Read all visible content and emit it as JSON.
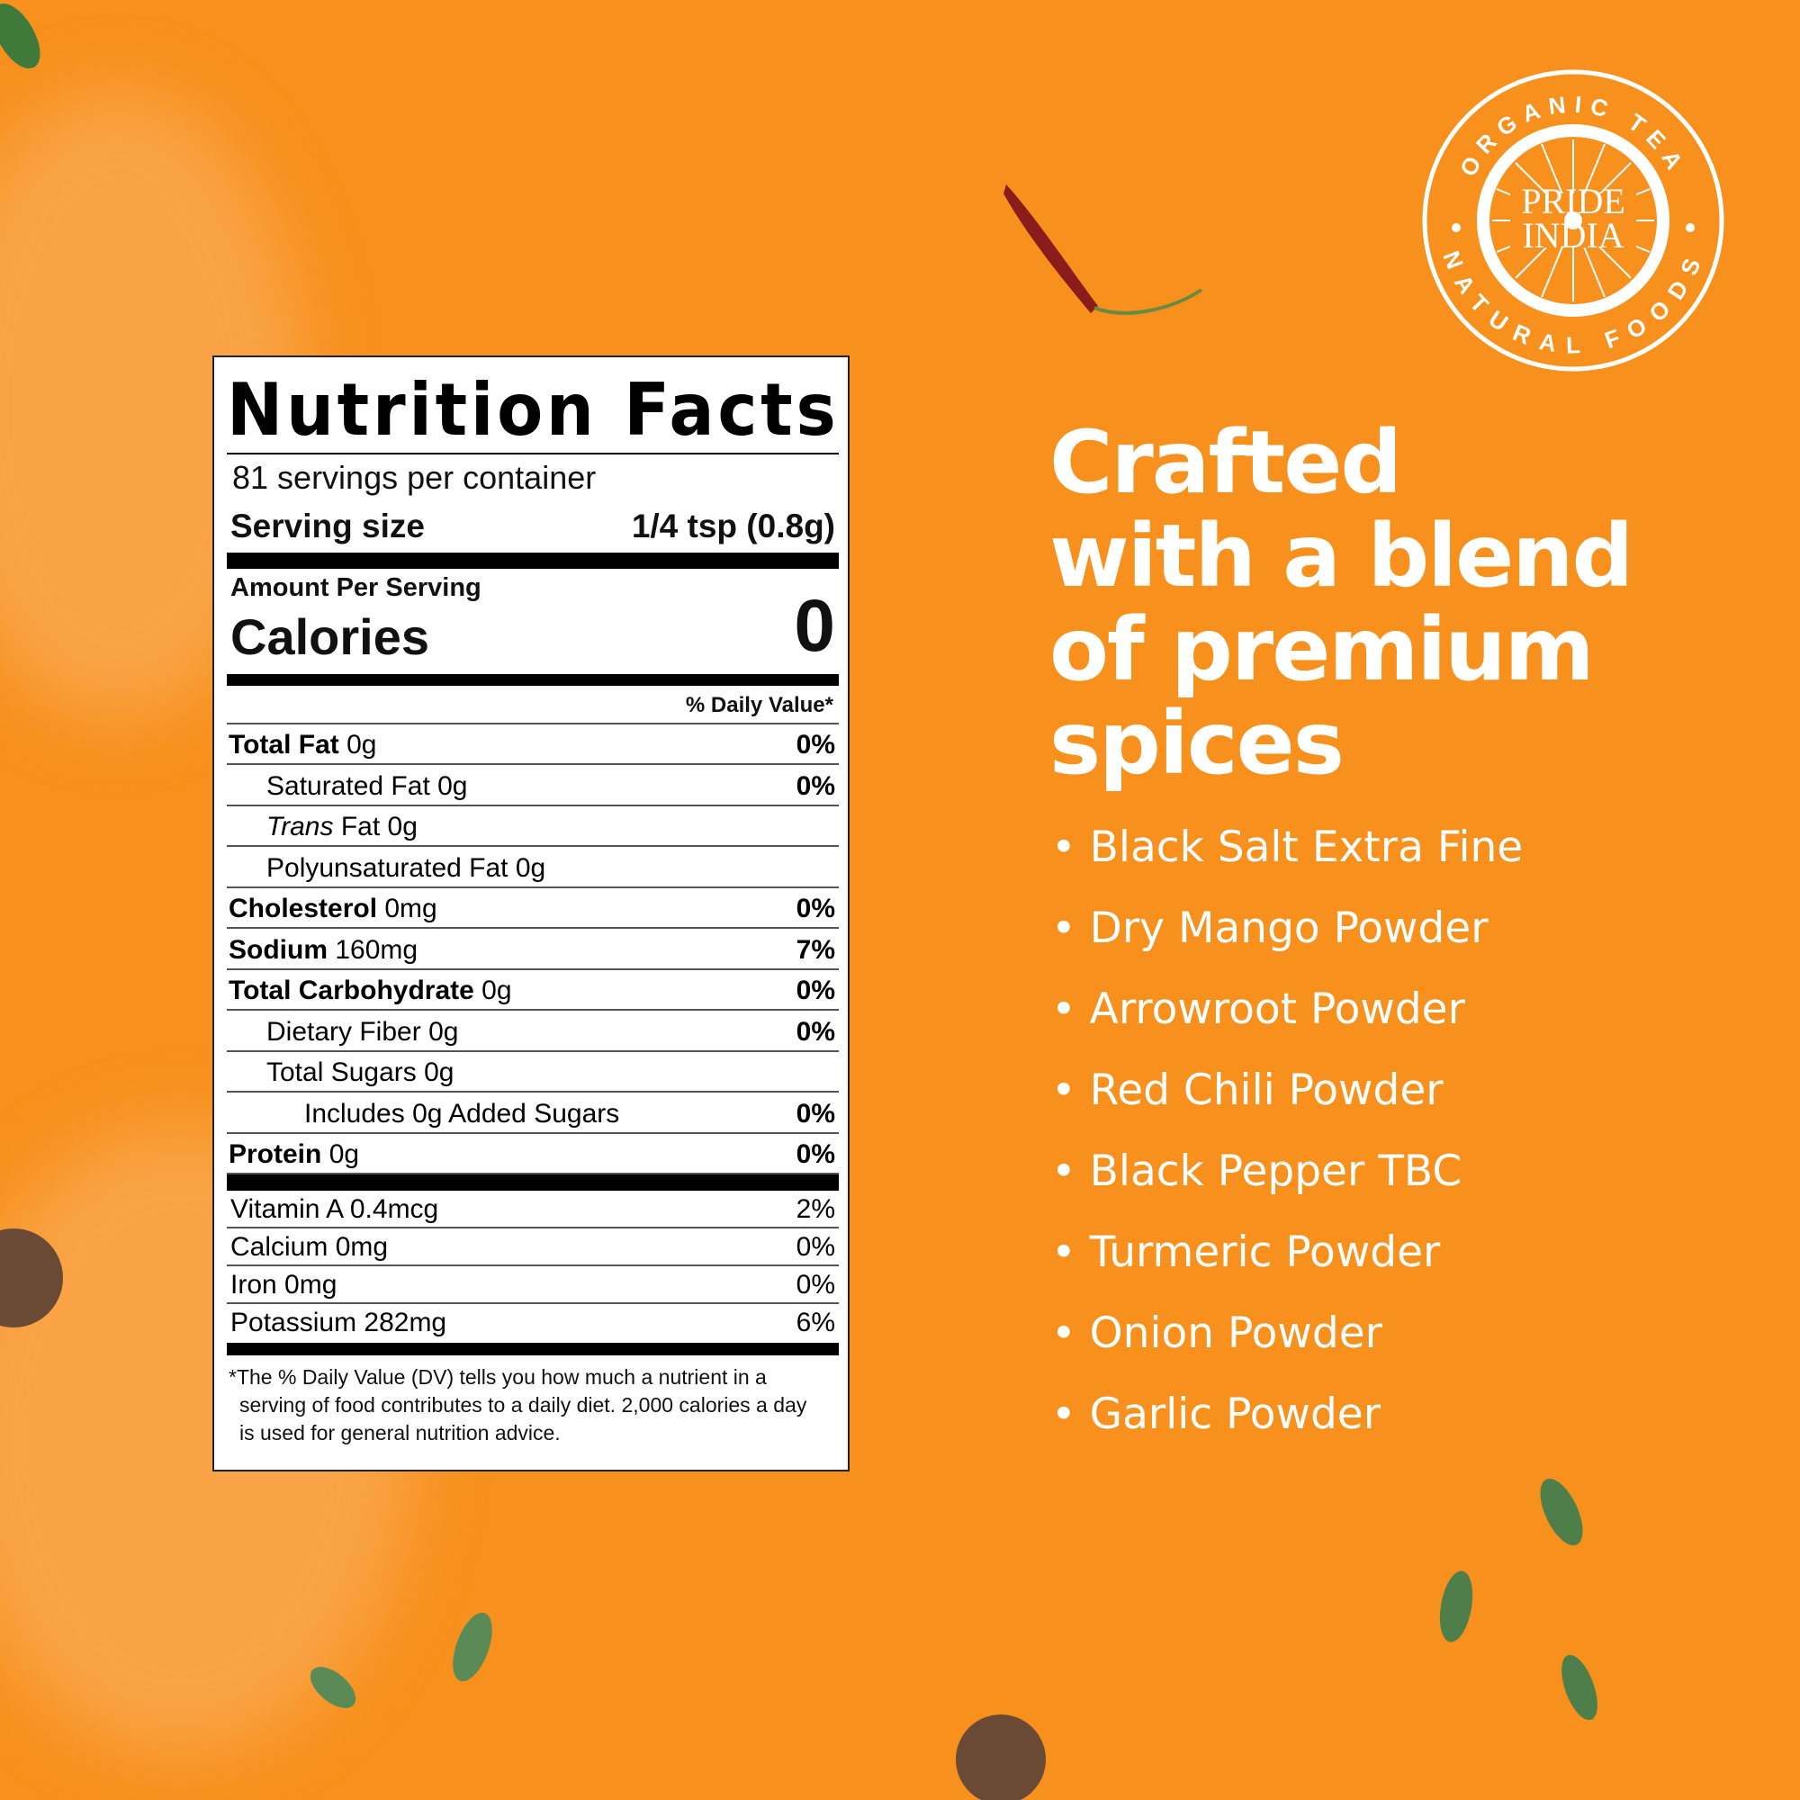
{
  "colors": {
    "background": "#F7901C",
    "text_light": "#FFFFFF",
    "label_bg": "#FFFFFF",
    "label_text": "#000000"
  },
  "logo": {
    "outer_text_top": "ORGANIC TEA",
    "outer_text_bottom": "NATURAL FOODS",
    "brand_line1": "PRIDE",
    "brand_line2": "INDIA"
  },
  "nutrition": {
    "title": "Nutrition Facts",
    "servings": "81 servings per container",
    "serving_size_label": "Serving size",
    "serving_size_value": "1/4 tsp (0.8g)",
    "amount_per_serving": "Amount Per Serving",
    "calories_label": "Calories",
    "calories_value": "0",
    "daily_value_header": "% Daily Value*",
    "rows": [
      {
        "name": "Total Fat",
        "amount": "0g",
        "dv": "0%",
        "bold": true,
        "indent": 0
      },
      {
        "name": "Saturated Fat",
        "amount": "0g",
        "dv": "0%",
        "bold": false,
        "indent": 1
      },
      {
        "name": "Trans",
        "name_suffix": "Fat",
        "amount": "0g",
        "dv": "",
        "bold": false,
        "indent": 1,
        "italic": true
      },
      {
        "name": "Polyunsaturated Fat",
        "amount": "0g",
        "dv": "",
        "bold": false,
        "indent": 1
      },
      {
        "name": "Cholesterol",
        "amount": "0mg",
        "dv": "0%",
        "bold": true,
        "indent": 0
      },
      {
        "name": "Sodium",
        "amount": "160mg",
        "dv": "7%",
        "bold": true,
        "indent": 0
      },
      {
        "name": "Total Carbohydrate",
        "amount": "0g",
        "dv": "0%",
        "bold": true,
        "indent": 0
      },
      {
        "name": "Dietary Fiber",
        "amount": "0g",
        "dv": "0%",
        "bold": false,
        "indent": 1
      },
      {
        "name": "Total Sugars",
        "amount": "0g",
        "dv": "",
        "bold": false,
        "indent": 1
      },
      {
        "name": "Includes 0g Added Sugars",
        "amount": "",
        "dv": "0%",
        "bold": false,
        "indent": 2
      },
      {
        "name": "Protein",
        "amount": "0g",
        "dv": "0%",
        "bold": true,
        "indent": 0
      }
    ],
    "vitamins": [
      {
        "name": "Vitamin A 0.4mcg",
        "dv": "2%"
      },
      {
        "name": "Calcium 0mg",
        "dv": "0%"
      },
      {
        "name": "Iron 0mg",
        "dv": "0%"
      },
      {
        "name": "Potassium 282mg",
        "dv": "6%"
      }
    ],
    "footnote": "The % Daily Value (DV) tells you how much a nutrient in a serving of food contributes to a daily diet. 2,000 calories a day is used for general nutrition advice."
  },
  "heading": {
    "lines": [
      "Crafted",
      "with a blend",
      "of premium",
      "spices"
    ]
  },
  "ingredients": [
    "Black Salt Extra Fine",
    "Dry Mango Powder",
    "Arrowroot Powder",
    "Red Chili Powder",
    "Black Pepper TBC",
    "Turmeric Powder",
    "Onion Powder",
    "Garlic Powder"
  ]
}
